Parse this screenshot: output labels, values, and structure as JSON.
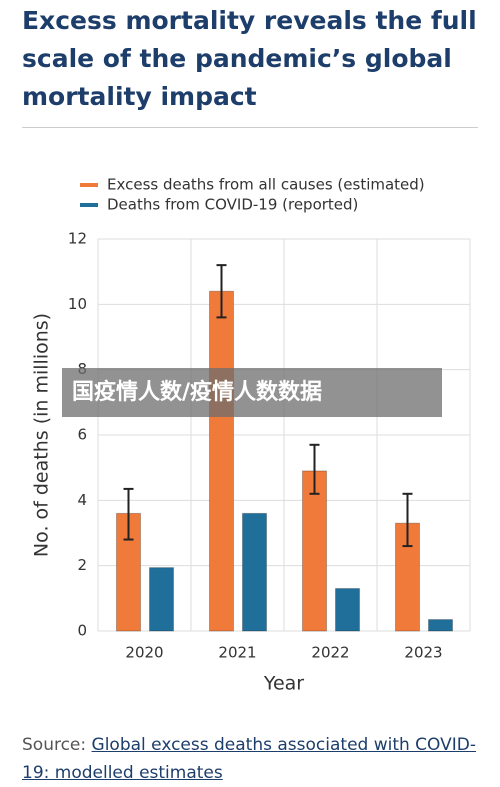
{
  "chart_data": {
    "type": "bar",
    "title": "Excess mortality reveals the full scale of the pandemic’s global mortality impact",
    "categories": [
      "2020",
      "2021",
      "2022",
      "2023"
    ],
    "series": [
      {
        "name": "Excess deaths from all causes (estimated)",
        "color": "#f07a3a",
        "values": [
          3.6,
          10.4,
          4.9,
          3.3
        ],
        "error_low": [
          2.8,
          9.6,
          4.2,
          2.6
        ],
        "error_high": [
          4.35,
          11.2,
          5.7,
          4.2
        ]
      },
      {
        "name": "Deaths from COVID-19 (reported)",
        "color": "#1f6f9a",
        "values": [
          1.94,
          3.6,
          1.3,
          0.35
        ]
      }
    ],
    "xlabel": "Year",
    "ylabel": "No. of deaths (in millions)",
    "ylim": [
      0,
      12
    ],
    "yticks": [
      0,
      2,
      4,
      6,
      8,
      10,
      12
    ],
    "grid": true,
    "overlay": "国疫情人数/疫情人数数据",
    "source_prefix": "Source:",
    "source_link": "Global excess deaths associated with COVID-19: modelled estimates"
  }
}
